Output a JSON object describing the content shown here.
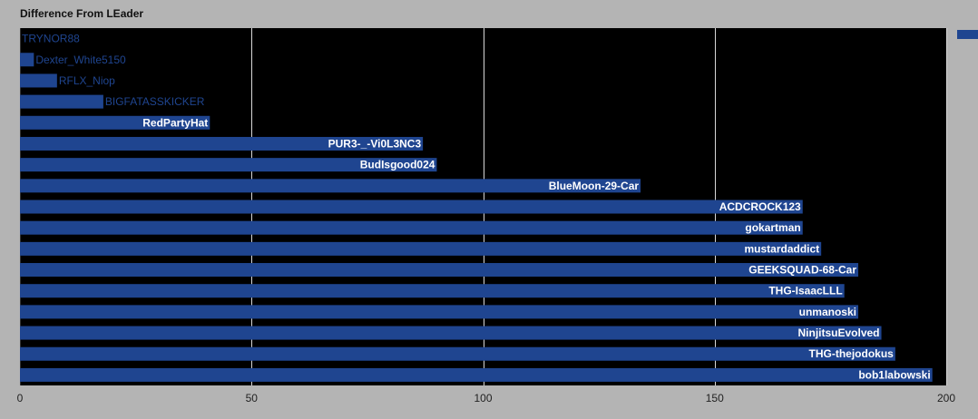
{
  "chart_data": {
    "type": "bar",
    "orientation": "horizontal",
    "title": "Difference From LEader",
    "xlabel": "",
    "ylabel": "",
    "xlim": [
      0,
      200
    ],
    "xticks": [
      0,
      50,
      100,
      150,
      200
    ],
    "grid": true,
    "legend": "top-right",
    "series_color": "#1f4590",
    "plot_background": "#000000",
    "categories": [
      "TRYNOR88",
      "Dexter_White5150",
      "RFLX_Niop",
      "BIGFATASSKICKER",
      "RedPartyHat",
      "PUR3-_-Vi0L3NC3",
      "BudIsgood024",
      "BlueMoon-29-Car",
      "ACDCROCK123",
      "gokartman",
      "mustardaddict",
      "GEEKSQUAD-68-Car",
      "THG-IsaacLLL",
      "unmanoski",
      "NinjitsuEvolved",
      "THG-thejodokus",
      "bob1labowski"
    ],
    "values": [
      0,
      3,
      8,
      18,
      41,
      87,
      90,
      134,
      169,
      169,
      173,
      181,
      178,
      181,
      186,
      189,
      197
    ]
  }
}
